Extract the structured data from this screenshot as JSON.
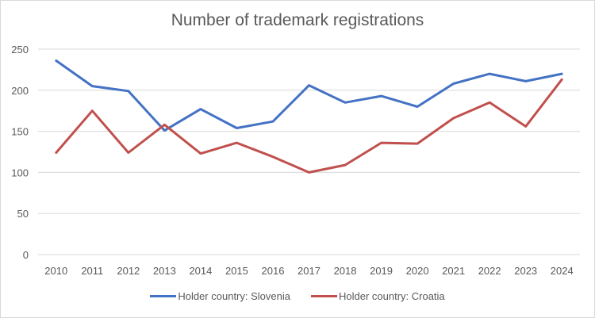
{
  "chart_data": {
    "type": "line",
    "title": "Number of trademark registrations",
    "xlabel": "",
    "ylabel": "",
    "x": [
      "2010",
      "2011",
      "2012",
      "2013",
      "2014",
      "2015",
      "2016",
      "2017",
      "2018",
      "2019",
      "2020",
      "2021",
      "2022",
      "2023",
      "2024"
    ],
    "series": [
      {
        "name": "Holder country: Slovenia",
        "color": "#4472c4",
        "values": [
          236,
          205,
          199,
          151,
          177,
          154,
          162,
          206,
          185,
          193,
          180,
          208,
          220,
          211,
          220
        ]
      },
      {
        "name": "Holder country: Croatia",
        "color": "#c0504d",
        "values": [
          124,
          175,
          124,
          158,
          123,
          136,
          119,
          100,
          109,
          136,
          135,
          166,
          185,
          156,
          213
        ]
      }
    ],
    "ylim": [
      0,
      250
    ],
    "yticks": [
      0,
      50,
      100,
      150,
      200,
      250
    ],
    "grid": true,
    "legend_position": "bottom"
  }
}
